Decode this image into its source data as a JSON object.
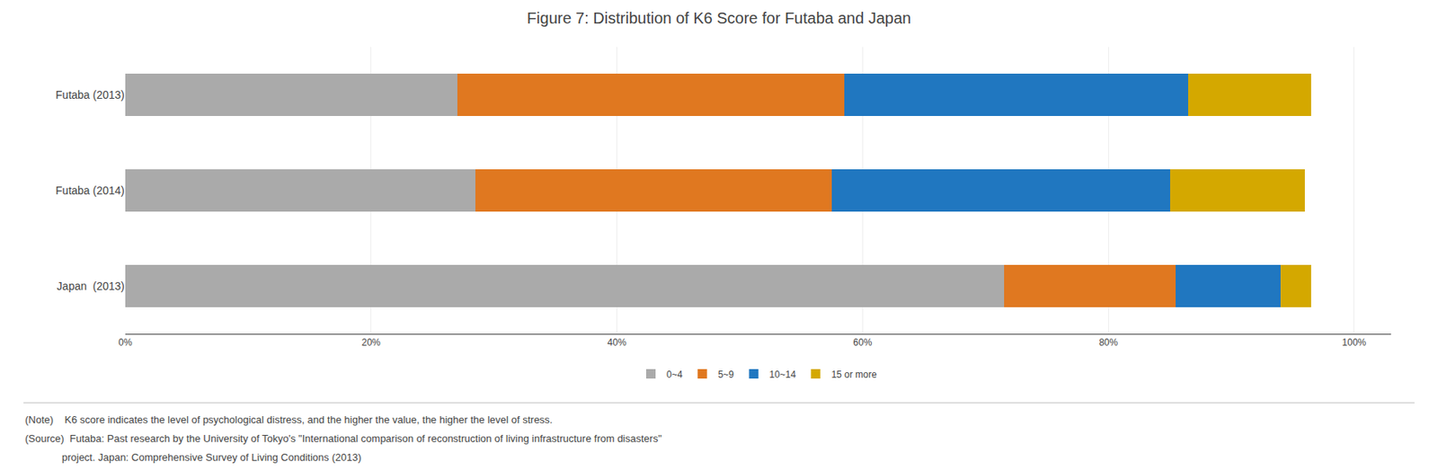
{
  "chart_data": {
    "type": "bar",
    "orientation": "horizontal",
    "stacked": true,
    "title": "Figure 7: Distribution of K6 Score for Futaba and Japan",
    "categories": [
      "Futaba (2013)",
      "Futaba (2014)",
      "Japan  (2013)"
    ],
    "series": [
      {
        "name": "0~4",
        "color": "#aaaaaa",
        "values": [
          27.0,
          28.5,
          71.5
        ]
      },
      {
        "name": "5~9",
        "color": "#e07820",
        "values": [
          31.5,
          29.0,
          14.0
        ]
      },
      {
        "name": "10~14",
        "color": "#2077c0",
        "values": [
          28.0,
          27.5,
          8.5
        ]
      },
      {
        "name": "15 or more",
        "color": "#d4a800",
        "values": [
          10.0,
          11.0,
          2.5
        ]
      }
    ],
    "xlim": [
      0,
      103
    ],
    "xticks": [
      {
        "value": 0,
        "label": "0%"
      },
      {
        "value": 20,
        "label": "20%"
      },
      {
        "value": 40,
        "label": "40%"
      },
      {
        "value": 60,
        "label": "60%"
      },
      {
        "value": 80,
        "label": "80%"
      },
      {
        "value": 100,
        "label": "100%"
      }
    ],
    "grid": true,
    "legend": "bottom",
    "annotations": [
      "(Note)    K6 score indicates the level of psychological distress, and the higher the value, the higher the level of stress.",
      "(Source)  Futaba: Past research by the University of Tokyo's \"International comparison of reconstruction of living infrastructure from disasters\"",
      "             project. Japan: Comprehensive Survey of Living Conditions (2013)"
    ]
  }
}
